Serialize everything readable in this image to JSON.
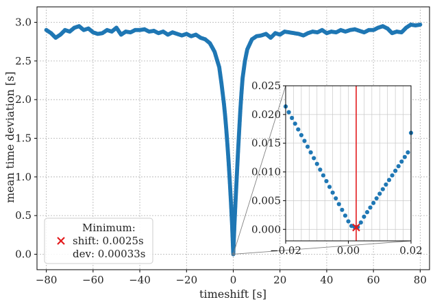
{
  "chart_data": [
    {
      "type": "scatter",
      "role": "main",
      "xlabel": "timeshift [s]",
      "ylabel": "mean time deviation [s]",
      "xlim": [
        -84,
        84
      ],
      "ylim": [
        -0.2,
        3.2
      ],
      "xticks": [
        -80,
        -60,
        -40,
        -20,
        0,
        20,
        40,
        60,
        80
      ],
      "yticks": [
        0.0,
        0.5,
        1.0,
        1.5,
        2.0,
        2.5,
        3.0
      ],
      "xtick_labels": [
        "−80",
        "−60",
        "−40",
        "−20",
        "0",
        "20",
        "40",
        "60",
        "80"
      ],
      "ytick_labels": [
        "0.0",
        "0.5",
        "1.0",
        "1.5",
        "2.0",
        "2.5",
        "3.0"
      ],
      "grid": true,
      "series": [
        {
          "name": "mean time deviation",
          "color": "#1f77b4",
          "x": [
            -80,
            -78,
            -76,
            -74,
            -72,
            -70,
            -68,
            -66,
            -64,
            -62,
            -60,
            -58,
            -56,
            -54,
            -52,
            -50,
            -48,
            -46,
            -44,
            -42,
            -40,
            -38,
            -36,
            -34,
            -32,
            -30,
            -28,
            -26,
            -24,
            -22,
            -20,
            -18,
            -16,
            -14,
            -12,
            -10,
            -8,
            -6,
            -5,
            -4,
            -3.5,
            -3,
            -2.5,
            -2,
            -1.5,
            -1,
            -0.5,
            0,
            0.5,
            1,
            1.5,
            2,
            2.5,
            3,
            3.5,
            4,
            5,
            6,
            8,
            10,
            12,
            14,
            16,
            18,
            20,
            22,
            24,
            26,
            28,
            30,
            32,
            34,
            36,
            38,
            40,
            42,
            44,
            46,
            48,
            50,
            52,
            54,
            56,
            58,
            60,
            62,
            64,
            66,
            68,
            70,
            72,
            74,
            76,
            78,
            80
          ],
          "y": [
            2.9,
            2.86,
            2.8,
            2.84,
            2.9,
            2.88,
            2.93,
            2.95,
            2.9,
            2.92,
            2.87,
            2.85,
            2.86,
            2.9,
            2.88,
            2.93,
            2.84,
            2.88,
            2.87,
            2.9,
            2.9,
            2.91,
            2.88,
            2.89,
            2.86,
            2.88,
            2.84,
            2.87,
            2.85,
            2.83,
            2.85,
            2.82,
            2.84,
            2.8,
            2.78,
            2.73,
            2.62,
            2.42,
            2.2,
            1.95,
            1.8,
            1.62,
            1.42,
            1.2,
            0.95,
            0.68,
            0.38,
            0.0,
            0.38,
            0.7,
            1.0,
            1.3,
            1.58,
            1.85,
            2.08,
            2.28,
            2.5,
            2.65,
            2.78,
            2.82,
            2.83,
            2.85,
            2.8,
            2.86,
            2.84,
            2.88,
            2.87,
            2.86,
            2.85,
            2.83,
            2.86,
            2.88,
            2.87,
            2.9,
            2.86,
            2.88,
            2.87,
            2.9,
            2.88,
            2.9,
            2.91,
            2.89,
            2.87,
            2.9,
            2.9,
            2.93,
            2.95,
            2.92,
            2.86,
            2.88,
            2.87,
            2.93,
            2.97,
            2.96,
            2.97
          ]
        }
      ],
      "legend": {
        "placement": "lower-left",
        "lines": [
          "Minimum:",
          "shift: 0.0025s",
          "dev: 0.00033s"
        ],
        "marker_color": "#e31a1c"
      }
    },
    {
      "type": "scatter",
      "role": "inset-zoom",
      "xlim": [
        -0.02,
        0.02
      ],
      "ylim": [
        -0.002,
        0.025
      ],
      "xticks": [
        -0.02,
        0.0,
        0.02
      ],
      "yticks": [
        0.0,
        0.005,
        0.01,
        0.015,
        0.02,
        0.025
      ],
      "xtick_labels": [
        "−0.02",
        "0.00",
        "0.02"
      ],
      "ytick_labels": [
        "0.000",
        "0.005",
        "0.010",
        "0.015",
        "0.020",
        "0.025"
      ],
      "grid": true,
      "vline_x": 0.0025,
      "vline_color": "#e31a1c",
      "minimum": {
        "x": 0.0025,
        "y": 0.00033
      },
      "series": [
        {
          "name": "zoom",
          "color": "#1f77b4",
          "x": [
            -0.02,
            -0.019,
            -0.018,
            -0.017,
            -0.016,
            -0.015,
            -0.014,
            -0.013,
            -0.012,
            -0.011,
            -0.01,
            -0.009,
            -0.008,
            -0.007,
            -0.006,
            -0.005,
            -0.004,
            -0.003,
            -0.002,
            -0.001,
            0.0,
            0.001,
            0.002,
            0.003,
            0.004,
            0.005,
            0.006,
            0.007,
            0.008,
            0.009,
            0.01,
            0.011,
            0.012,
            0.013,
            0.014,
            0.015,
            0.016,
            0.017,
            0.018,
            0.019,
            0.02
          ],
          "y": [
            0.0214,
            0.0204,
            0.0194,
            0.0184,
            0.0174,
            0.0164,
            0.0154,
            0.0144,
            0.0134,
            0.0124,
            0.0114,
            0.0104,
            0.0094,
            0.0084,
            0.0074,
            0.0064,
            0.0054,
            0.0044,
            0.0034,
            0.0024,
            0.0014,
            0.0006,
            0.0004,
            0.0004,
            0.0012,
            0.0022,
            0.003,
            0.0038,
            0.0046,
            0.0054,
            0.0062,
            0.007,
            0.0078,
            0.0086,
            0.0094,
            0.0102,
            0.011,
            0.0118,
            0.0126,
            0.0134,
            0.0168
          ]
        }
      ]
    }
  ]
}
